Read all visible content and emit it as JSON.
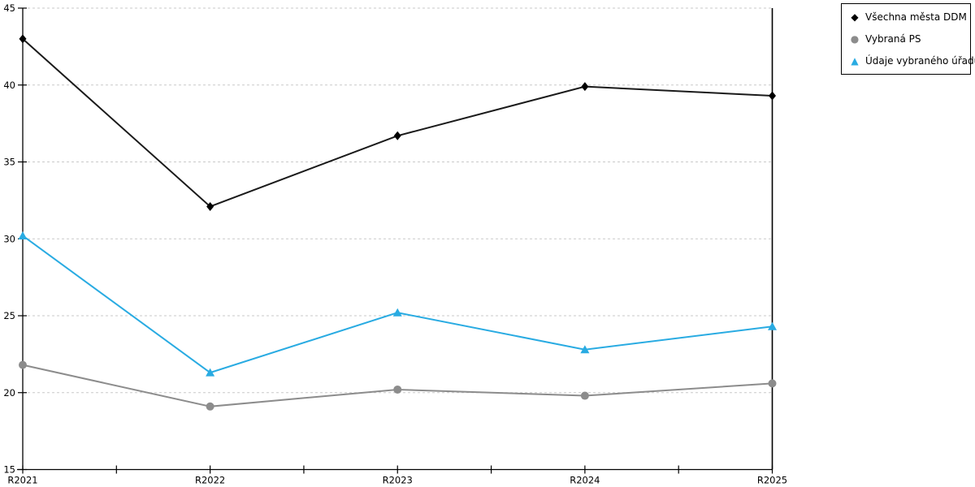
{
  "chart_data": {
    "type": "line",
    "title": "",
    "xlabel": "",
    "ylabel": "",
    "categories": [
      "R2021",
      "R2022",
      "R2023",
      "R2024",
      "R2025"
    ],
    "series": [
      {
        "name": "Všechna města DDM",
        "marker": "diamond",
        "color": "#1a1a1a",
        "marker_color": "#000000",
        "values": [
          43.0,
          32.1,
          36.7,
          39.9,
          39.3
        ]
      },
      {
        "name": "Vybraná PS",
        "marker": "circle",
        "color": "#8c8c8c",
        "marker_color": "#8c8c8c",
        "values": [
          21.8,
          19.1,
          20.2,
          19.8,
          20.6
        ]
      },
      {
        "name": "Údaje vybraného úřadu",
        "marker": "triangle",
        "color": "#29abe2",
        "marker_color": "#29abe2",
        "values": [
          30.2,
          21.3,
          25.2,
          22.8,
          24.3
        ]
      }
    ],
    "ylim": [
      15,
      45
    ],
    "yticks": [
      15,
      20,
      25,
      30,
      35,
      40,
      45
    ],
    "grid": "horizontal-dashed",
    "gridline_color": "#c9c9c9",
    "axis_color": "#000000",
    "legend_position": "outside-top-right"
  }
}
